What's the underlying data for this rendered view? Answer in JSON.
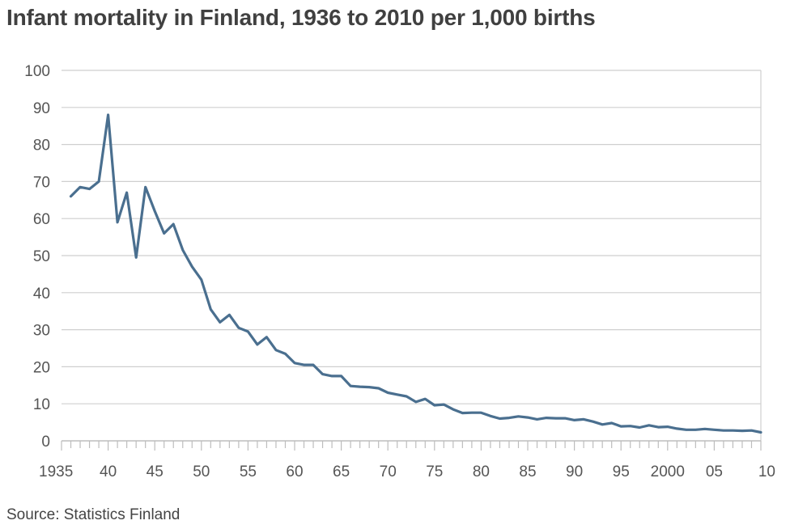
{
  "title": "Infant mortality in Finland, 1936 to 2010 per 1,000 births",
  "source": "Source: Statistics Finland",
  "colors": {
    "line": "#4a6f8f",
    "grid": "#cfcfcf",
    "axis": "#bdbdbd",
    "text": "#555555",
    "title": "#404040"
  },
  "chart_data": {
    "type": "line",
    "title": "Infant mortality in Finland, 1936 to 2010 per 1,000 births",
    "xlabel": "",
    "ylabel": "",
    "xlim": [
      1935,
      2010
    ],
    "ylim": [
      0,
      100
    ],
    "grid": true,
    "y_ticks": [
      0,
      10,
      20,
      30,
      40,
      50,
      60,
      70,
      80,
      90,
      100
    ],
    "x_ticks": [
      1935,
      1940,
      1945,
      1950,
      1955,
      1960,
      1965,
      1970,
      1975,
      1980,
      1985,
      1990,
      1995,
      2000,
      2005,
      2010
    ],
    "x_tick_labels": [
      "1935",
      "40",
      "45",
      "50",
      "55",
      "60",
      "65",
      "70",
      "75",
      "80",
      "85",
      "90",
      "95",
      "2000",
      "05",
      "10"
    ],
    "series": [
      {
        "x": [
          1936,
          1937,
          1938,
          1939,
          1940,
          1941,
          1942,
          1943,
          1944,
          1945,
          1946,
          1947,
          1948,
          1949,
          1950,
          1951,
          1952,
          1953,
          1954,
          1955,
          1956,
          1957,
          1958,
          1959,
          1960,
          1961,
          1962,
          1963,
          1964,
          1965,
          1966,
          1967,
          1968,
          1969,
          1970,
          1971,
          1972,
          1973,
          1974,
          1975,
          1976,
          1977,
          1978,
          1979,
          1980,
          1981,
          1982,
          1983,
          1984,
          1985,
          1986,
          1987,
          1988,
          1989,
          1990,
          1991,
          1992,
          1993,
          1994,
          1995,
          1996,
          1997,
          1998,
          1999,
          2000,
          2001,
          2002,
          2003,
          2004,
          2005,
          2006,
          2007,
          2008,
          2009,
          2010
        ],
        "y": [
          66,
          68.5,
          68,
          70,
          88,
          59,
          67,
          49.5,
          68.5,
          62,
          56,
          58.5,
          51.5,
          47,
          43.5,
          35.5,
          32,
          34,
          30.5,
          29.5,
          26,
          28,
          24.5,
          23.5,
          21,
          20.5,
          20.5,
          18,
          17.5,
          17.5,
          14.8,
          14.6,
          14.5,
          14.2,
          13,
          12.5,
          12,
          10.5,
          11.3,
          9.6,
          9.8,
          8.5,
          7.5,
          7.6,
          7.6,
          6.7,
          6,
          6.2,
          6.6,
          6.3,
          5.8,
          6.2,
          6.1,
          6.1,
          5.6,
          5.8,
          5.2,
          4.4,
          4.8,
          3.9,
          4,
          3.6,
          4.2,
          3.7,
          3.8,
          3.3,
          3,
          3,
          3.2,
          3,
          2.8,
          2.8,
          2.7,
          2.8,
          2.3
        ]
      }
    ]
  }
}
